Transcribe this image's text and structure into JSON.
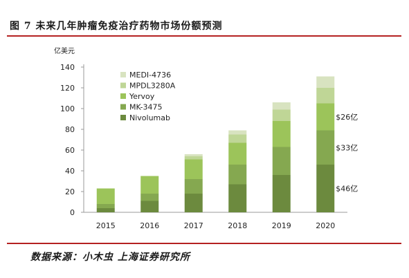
{
  "figure": {
    "title": "图 7 未来几年肿瘤免疫治疗药物市场份额预测",
    "source": "数据来源：小木虫 上海证券研究所"
  },
  "colors": {
    "rule": "#b52121",
    "MEDI-4736": "#d8e3c0",
    "MPDL3280A": "#bfd696",
    "Yervoy": "#9cc45a",
    "MK-3475": "#85a850",
    "Nivolumab": "#6c8a3e"
  },
  "chart_data": {
    "type": "bar",
    "stacked": true,
    "title": "",
    "xlabel": "",
    "ylabel": "亿美元",
    "ylim": [
      0,
      140
    ],
    "yticks": [
      0,
      20,
      40,
      60,
      80,
      100,
      120,
      140
    ],
    "categories": [
      "2015",
      "2016",
      "2017",
      "2018",
      "2019",
      "2020"
    ],
    "series": [
      {
        "name": "Nivolumab",
        "values": [
          4,
          11,
          18,
          27,
          36,
          46
        ]
      },
      {
        "name": "MK-3475",
        "values": [
          4,
          7,
          14,
          19,
          27,
          33
        ]
      },
      {
        "name": "Yervoy",
        "values": [
          15,
          17,
          19,
          21,
          25,
          26
        ]
      },
      {
        "name": "MPDL3280A",
        "values": [
          0,
          0,
          3,
          8,
          11,
          15
        ]
      },
      {
        "name": "MEDI-4736",
        "values": [
          0,
          0,
          2,
          4,
          7,
          11
        ]
      }
    ],
    "legend_order": [
      "MEDI-4736",
      "MPDL3280A",
      "Yervoy",
      "MK-3475",
      "Nivolumab"
    ],
    "legend_position": "top-left",
    "grid": false,
    "annotations": [
      {
        "text": "$26亿",
        "category": "2020",
        "series": "Yervoy"
      },
      {
        "text": "$33亿",
        "category": "2020",
        "series": "MK-3475"
      },
      {
        "text": "$46亿",
        "category": "2020",
        "series": "Nivolumab"
      }
    ]
  }
}
